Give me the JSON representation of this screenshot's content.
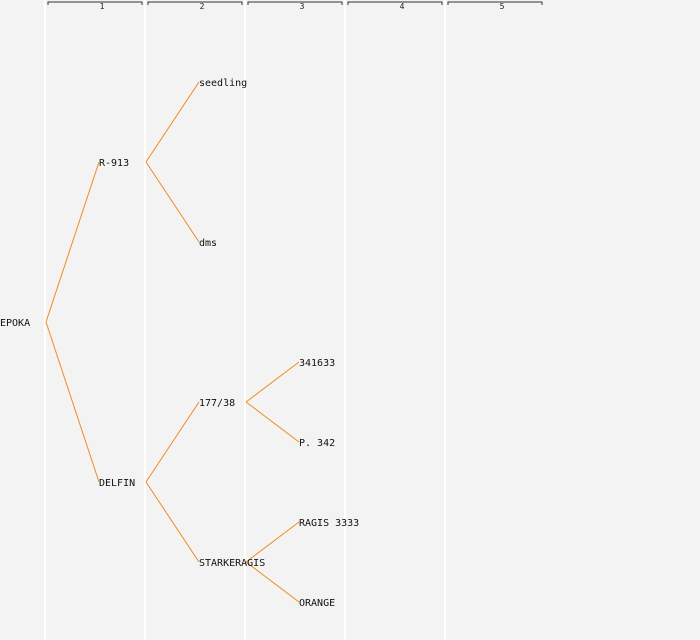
{
  "generations": [
    "1",
    "2",
    "3",
    "4",
    "5"
  ],
  "tree": {
    "label": "EPOKA",
    "children": [
      {
        "label": "R-913",
        "children": [
          {
            "label": "seedling"
          },
          {
            "label": "dms"
          }
        ]
      },
      {
        "label": "DELFIN",
        "children": [
          {
            "label": "177/38",
            "children": [
              {
                "label": "341633"
              },
              {
                "label": "P. 342"
              }
            ]
          },
          {
            "label": "STARKERAGIS",
            "children": [
              {
                "label": "RAGIS 3333"
              },
              {
                "label": "ORANGE"
              }
            ]
          }
        ]
      }
    ]
  },
  "colors": {
    "background": "#f3f3f3",
    "edge": "#f08c1e",
    "separator": "#ffffff"
  }
}
